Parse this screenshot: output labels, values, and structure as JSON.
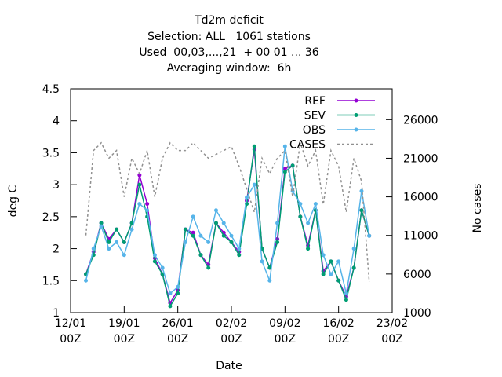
{
  "chart_data": {
    "type": "line",
    "title": [
      "Td2m deficit",
      "Selection: ALL   1061 stations",
      "Used  00,03,...,21  + 00 01 ... 36",
      "Averaging window:  6h"
    ],
    "xlabel": "Date",
    "ylabel": "deg C",
    "y2label": "No cases",
    "xlim": [
      0,
      42
    ],
    "ylim": [
      1,
      4.5
    ],
    "y2lim": [
      1000,
      30000
    ],
    "xticks": [
      {
        "value": 0,
        "label": "12/01\n00Z"
      },
      {
        "value": 7,
        "label": "19/01\n00Z"
      },
      {
        "value": 14,
        "label": "26/01\n00Z"
      },
      {
        "value": 21,
        "label": "02/02\n00Z"
      },
      {
        "value": 28,
        "label": "09/02\n00Z"
      },
      {
        "value": 35,
        "label": "16/02\n00Z"
      },
      {
        "value": 42,
        "label": "23/02\n00Z"
      }
    ],
    "yticks": [
      1,
      1.5,
      2,
      2.5,
      3,
      3.5,
      4,
      4.5
    ],
    "y2ticks": [
      1000,
      6000,
      11000,
      16000,
      21000,
      26000
    ],
    "legend": "top right",
    "x": [
      2,
      3,
      4,
      5,
      6,
      7,
      8,
      9,
      10,
      11,
      12,
      13,
      14,
      15,
      16,
      17,
      18,
      19,
      20,
      21,
      22,
      23,
      24,
      25,
      26,
      27,
      28,
      29,
      30,
      31,
      32,
      33,
      34,
      35,
      36,
      37,
      38,
      39
    ],
    "series": [
      {
        "name": "REF",
        "color": "#9400d3",
        "values": [
          1.6,
          1.95,
          2.4,
          2.15,
          2.3,
          2.1,
          2.4,
          3.15,
          2.7,
          1.85,
          1.6,
          1.15,
          1.35,
          2.3,
          2.25,
          1.9,
          1.75,
          2.4,
          2.25,
          2.1,
          1.95,
          2.75,
          3.55,
          2.0,
          1.7,
          2.15,
          3.25,
          3.3,
          2.5,
          2.05,
          2.6,
          1.65,
          1.8,
          1.5,
          1.25,
          1.7,
          2.6,
          2.2
        ]
      },
      {
        "name": "SEV",
        "color": "#009e73",
        "values": [
          1.6,
          1.9,
          2.4,
          2.1,
          2.3,
          2.1,
          2.4,
          3.0,
          2.5,
          1.8,
          1.6,
          1.1,
          1.3,
          2.3,
          2.2,
          1.9,
          1.7,
          2.4,
          2.2,
          2.1,
          1.9,
          2.7,
          3.6,
          2.0,
          1.7,
          2.1,
          3.2,
          3.3,
          2.5,
          2.0,
          2.6,
          1.6,
          1.8,
          1.5,
          1.2,
          1.7,
          2.6,
          2.2
        ]
      },
      {
        "name": "OBS",
        "color": "#56b4e9",
        "values": [
          1.5,
          2.0,
          2.35,
          2.0,
          2.1,
          1.9,
          2.3,
          2.7,
          2.6,
          1.9,
          1.7,
          1.3,
          1.4,
          2.1,
          2.5,
          2.2,
          2.1,
          2.6,
          2.4,
          2.2,
          2.0,
          2.8,
          3.0,
          1.8,
          1.5,
          2.4,
          3.6,
          2.9,
          2.7,
          2.4,
          2.7,
          1.9,
          1.6,
          1.8,
          1.3,
          2.0,
          2.9,
          2.2
        ]
      },
      {
        "name": "CASES",
        "color": "#909090",
        "axis": "y2",
        "dashed": true,
        "values": [
          11000,
          22000,
          23000,
          21000,
          22000,
          16000,
          21000,
          19000,
          22000,
          16000,
          21000,
          23000,
          22000,
          22000,
          23000,
          22000,
          21000,
          21500,
          22000,
          22500,
          20000,
          17000,
          14000,
          21000,
          19000,
          21000,
          22000,
          16000,
          23000,
          20000,
          22000,
          15000,
          22000,
          20000,
          14000,
          21000,
          18000,
          5000
        ]
      }
    ]
  }
}
